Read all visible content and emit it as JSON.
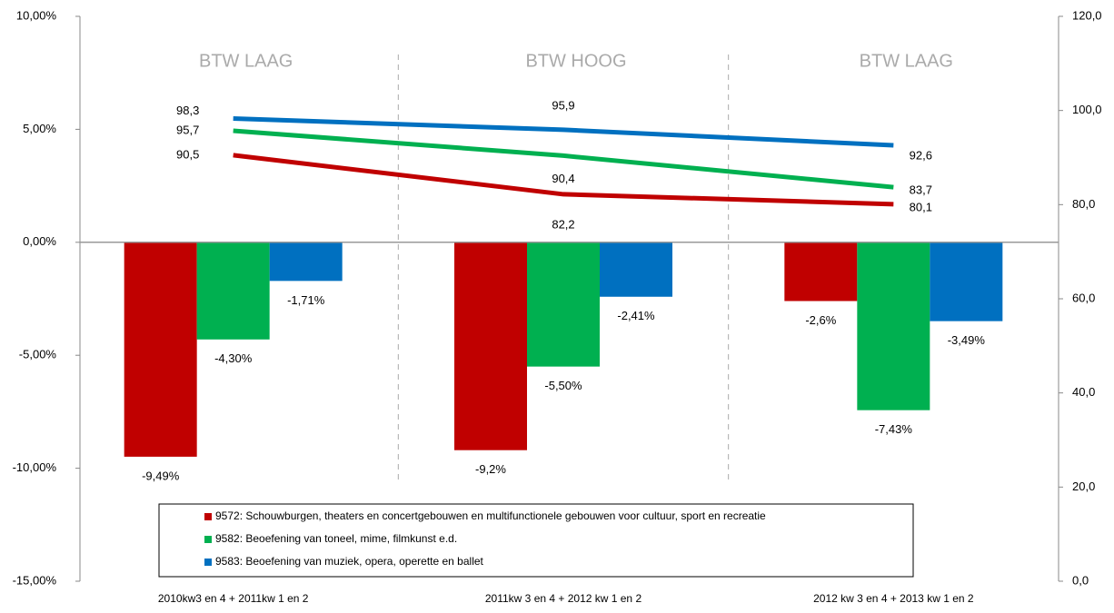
{
  "chart_data": {
    "type": "bar_line",
    "categories": [
      "2010kw3 en 4 + 2011kw 1 en 2",
      "2011kw 3 en 4 + 2012 kw 1 en 2",
      "2012 kw 3 en 4 + 2013 kw 1 en 2"
    ],
    "annotations": [
      "BTW LAAG",
      "BTW HOOG",
      "BTW LAAG"
    ],
    "series": [
      {
        "name": "9572: Schouwburgen, theaters en concertgebouwen en multifunctionele gebouwen voor cultuur, sport en recreatie",
        "color": "#c00000",
        "values": [
          -9.49,
          -9.2,
          -2.6
        ],
        "value_labels": [
          "-9,49%",
          "-9,2%",
          "-2,6%"
        ],
        "y2_values": [
          90.5,
          82.2,
          80.1
        ],
        "y2_value_labels": [
          "90,5",
          "82,2",
          "80,1"
        ]
      },
      {
        "name": "9582: Beoefening van toneel, mime, filmkunst e.d.",
        "color": "#00b050",
        "values": [
          -4.3,
          -5.5,
          -7.43
        ],
        "value_labels": [
          "-4,30%",
          "-5,50%",
          "-7,43%"
        ],
        "y2_values": [
          95.7,
          90.4,
          83.7
        ],
        "y2_value_labels": [
          "95,7",
          "90,4",
          "83,7"
        ]
      },
      {
        "name": "9583: Beoefening van muziek, opera, operette en ballet",
        "color": "#0070c0",
        "values": [
          -1.71,
          -2.41,
          -3.49
        ],
        "value_labels": [
          "-1,71%",
          "-2,41%",
          "-3,49%"
        ],
        "y2_values": [
          98.3,
          95.9,
          92.6
        ],
        "y2_value_labels": [
          "98,3",
          "95,9",
          "92,6"
        ]
      }
    ],
    "ylim": [
      -15,
      10
    ],
    "yticks": [
      {
        "value": -15,
        "label": "-15,00%"
      },
      {
        "value": -10,
        "label": "-10,00%"
      },
      {
        "value": -5,
        "label": "-5,00%"
      },
      {
        "value": 0,
        "label": "0,00%"
      },
      {
        "value": 5,
        "label": "5,00%"
      },
      {
        "value": 10,
        "label": "10,00%"
      }
    ],
    "y2lim": [
      0,
      120
    ],
    "y2ticks": [
      {
        "value": 0,
        "label": "0,0"
      },
      {
        "value": 20,
        "label": "20,0"
      },
      {
        "value": 40,
        "label": "40,0"
      },
      {
        "value": 60,
        "label": "60,0"
      },
      {
        "value": 80,
        "label": "80,0"
      },
      {
        "value": 100,
        "label": "100,0"
      },
      {
        "value": 120,
        "label": "120,0"
      }
    ],
    "legend": "bottom"
  }
}
